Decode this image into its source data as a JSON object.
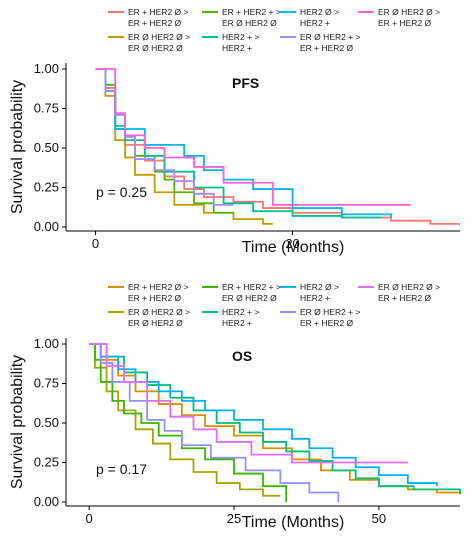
{
  "chart_data": [
    {
      "type": "line",
      "panel_label": "PFS",
      "xlabel": "Time (Months)",
      "ylabel": "Survival probability",
      "xlim": [
        -3,
        37
      ],
      "ylim": [
        0,
        1.0
      ],
      "xticks": [
        0,
        20
      ],
      "yticks": [
        "0.00",
        "0.25",
        "0.50",
        "0.75",
        "1.00"
      ],
      "yticks_values": [
        0,
        0.25,
        0.5,
        0.75,
        1.0
      ],
      "pvalue": "p = 0.25",
      "grid": false,
      "legend_position": "top",
      "series": [
        {
          "name": "ER + HER2 Ø > ER + HER2 Ø",
          "label_lines": [
            "ER + HER2 Ø >",
            "ER + HER2 Ø"
          ],
          "color": "#F8766D",
          "x": [
            0,
            1,
            2,
            3,
            5,
            7,
            9,
            11,
            14,
            17,
            20,
            25,
            30,
            34,
            37
          ],
          "y": [
            1.0,
            0.88,
            0.62,
            0.52,
            0.42,
            0.32,
            0.24,
            0.19,
            0.16,
            0.12,
            0.09,
            0.06,
            0.04,
            0.02,
            0.02
          ]
        },
        {
          "name": "ER Ø HER2 Ø > ER Ø HER2 Ø",
          "label_lines": [
            "ER Ø HER2 Ø >",
            "ER Ø HER2 Ø"
          ],
          "color": "#C49A00",
          "x": [
            0,
            1,
            2,
            3,
            4,
            6,
            8,
            11,
            14,
            17,
            18
          ],
          "y": [
            1.0,
            0.83,
            0.55,
            0.44,
            0.33,
            0.22,
            0.14,
            0.09,
            0.05,
            0.02,
            0.02
          ]
        },
        {
          "name": "ER + HER2 + > ER Ø HER2 Ø",
          "label_lines": [
            "ER + HER2 + >",
            "ER Ø HER2 Ø"
          ],
          "color": "#53B400",
          "x": [
            0,
            1,
            2,
            3,
            4,
            6,
            7,
            8,
            10,
            12,
            14
          ],
          "y": [
            1.0,
            0.9,
            0.72,
            0.58,
            0.45,
            0.35,
            0.3,
            0.22,
            0.15,
            0.09,
            0.09
          ]
        },
        {
          "name": "HER2 + > HER2 +",
          "label_lines": [
            "HER2 + >",
            "HER2 +"
          ],
          "color": "#00C094",
          "x": [
            0,
            1,
            2,
            3,
            5,
            7,
            10,
            13,
            16,
            20,
            25,
            29
          ],
          "y": [
            1.0,
            0.86,
            0.64,
            0.55,
            0.45,
            0.35,
            0.25,
            0.15,
            0.1,
            0.07,
            0.06,
            0.06
          ]
        },
        {
          "name": "HER2 Ø > HER2 +",
          "label_lines": [
            "HER2 Ø >",
            "HER2 +"
          ],
          "color": "#00B6EB",
          "x": [
            0,
            1,
            2,
            4,
            5,
            7,
            9,
            11,
            13,
            16,
            20,
            25,
            30
          ],
          "y": [
            1.0,
            0.86,
            0.62,
            0.62,
            0.52,
            0.52,
            0.45,
            0.36,
            0.3,
            0.24,
            0.12,
            0.08,
            0.06
          ]
        },
        {
          "name": "ER Ø HER2 + > ER + HER2 Ø",
          "label_lines": [
            "ER Ø HER2 + >",
            "ER + HER2 Ø"
          ],
          "color": "#A58AFF",
          "x": [
            0,
            1,
            2,
            3,
            4,
            6,
            8,
            10,
            12,
            14
          ],
          "y": [
            1.0,
            0.86,
            0.71,
            0.57,
            0.43,
            0.36,
            0.29,
            0.21,
            0.14,
            0.14
          ]
        },
        {
          "name": "ER Ø HER2 Ø > ER + HER2 Ø",
          "label_lines": [
            "ER Ø HER2 Ø >",
            "ER + HER2 Ø"
          ],
          "color": "#FB61D7",
          "x": [
            0,
            2,
            3,
            5,
            7,
            10,
            13,
            18,
            25,
            32
          ],
          "y": [
            1.0,
            0.72,
            0.58,
            0.5,
            0.44,
            0.38,
            0.28,
            0.14,
            0.14,
            0.14
          ]
        }
      ]
    },
    {
      "type": "line",
      "panel_label": "OS",
      "xlabel": "Time (Months)",
      "ylabel": "Survival probability",
      "xlim": [
        -4,
        64
      ],
      "ylim": [
        0,
        1.0
      ],
      "xticks": [
        0,
        25,
        50
      ],
      "yticks": [
        "0.00",
        "0.25",
        "0.50",
        "0.75",
        "1.00"
      ],
      "yticks_values": [
        0,
        0.25,
        0.5,
        0.75,
        1.0
      ],
      "pvalue": "p = 0.17",
      "grid": false,
      "legend_position": "top",
      "series": [
        {
          "name": "ER + HER2 Ø > ER + HER2 Ø",
          "label_lines": [
            "ER + HER2 Ø >",
            "ER + HER2 Ø"
          ],
          "color": "#D89000",
          "x": [
            0,
            2,
            5,
            8,
            12,
            16,
            20,
            25,
            30,
            35,
            40,
            45,
            50,
            55,
            60,
            64
          ],
          "y": [
            1.0,
            0.9,
            0.8,
            0.7,
            0.62,
            0.55,
            0.48,
            0.42,
            0.34,
            0.27,
            0.2,
            0.14,
            0.1,
            0.08,
            0.06,
            0.05
          ]
        },
        {
          "name": "ER Ø HER2 Ø > ER Ø HER2 Ø",
          "label_lines": [
            "ER Ø HER2 Ø >",
            "ER Ø HER2 Ø"
          ],
          "color": "#A3A500",
          "x": [
            0,
            1,
            3,
            5,
            8,
            11,
            14,
            18,
            22,
            26,
            30,
            33
          ],
          "y": [
            1.0,
            0.85,
            0.7,
            0.58,
            0.46,
            0.37,
            0.27,
            0.19,
            0.12,
            0.08,
            0.04,
            0.04
          ]
        },
        {
          "name": "ER + HER2 + > ER Ø HER2 Ø",
          "label_lines": [
            "ER + HER2 + >",
            "ER Ø HER2 Ø"
          ],
          "color": "#39B600",
          "x": [
            0,
            1,
            2,
            4,
            6,
            9,
            12,
            16,
            20,
            25,
            30,
            34
          ],
          "y": [
            1.0,
            0.9,
            0.76,
            0.64,
            0.56,
            0.5,
            0.42,
            0.34,
            0.27,
            0.18,
            0.1,
            0.0
          ]
        },
        {
          "name": "HER2 + > HER2 +",
          "label_lines": [
            "HER2 + >",
            "HER2 +"
          ],
          "color": "#00BF7D",
          "x": [
            0,
            3,
            6,
            10,
            14,
            18,
            22,
            26,
            30,
            34,
            38,
            42,
            46,
            50,
            56,
            64
          ],
          "y": [
            1.0,
            0.92,
            0.82,
            0.74,
            0.66,
            0.58,
            0.5,
            0.44,
            0.38,
            0.32,
            0.26,
            0.2,
            0.15,
            0.1,
            0.08,
            0.05
          ]
        },
        {
          "name": "HER2 Ø > HER2 +",
          "label_lines": [
            "HER2 Ø >",
            "HER2 +"
          ],
          "color": "#00B0F6",
          "x": [
            0,
            2,
            5,
            8,
            12,
            16,
            20,
            25,
            30,
            35,
            38,
            42,
            46,
            50,
            55,
            60
          ],
          "y": [
            1.0,
            0.92,
            0.84,
            0.76,
            0.7,
            0.64,
            0.58,
            0.52,
            0.46,
            0.4,
            0.34,
            0.28,
            0.22,
            0.17,
            0.12,
            0.1
          ]
        },
        {
          "name": "ER Ø HER2 + > ER + HER2 Ø",
          "label_lines": [
            "ER Ø HER2 + >",
            "ER + HER2 Ø"
          ],
          "color": "#9590FF",
          "x": [
            0,
            2,
            4,
            7,
            10,
            13,
            16,
            21,
            27,
            33,
            38,
            43
          ],
          "y": [
            1.0,
            0.88,
            0.76,
            0.64,
            0.52,
            0.45,
            0.36,
            0.28,
            0.2,
            0.12,
            0.06,
            0.0
          ]
        },
        {
          "name": "ER Ø HER2 Ø > ER + HER2 Ø",
          "label_lines": [
            "ER Ø HER2 Ø >",
            "ER + HER2 Ø"
          ],
          "color": "#E76BF3",
          "x": [
            0,
            3,
            6,
            10,
            14,
            18,
            22,
            28,
            35,
            42,
            48,
            55
          ],
          "y": [
            1.0,
            0.86,
            0.76,
            0.64,
            0.54,
            0.46,
            0.38,
            0.3,
            0.25,
            0.25,
            0.25,
            0.25
          ]
        }
      ]
    }
  ]
}
